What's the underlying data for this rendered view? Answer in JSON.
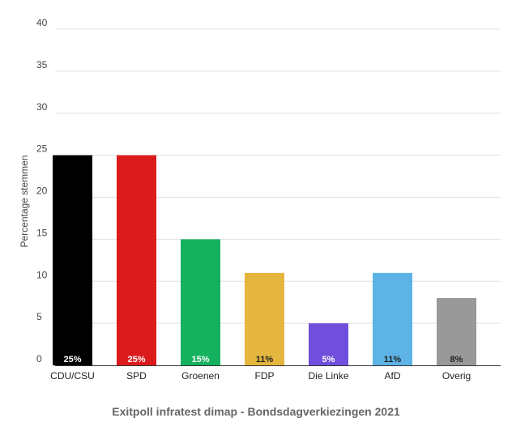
{
  "chart_data": {
    "type": "bar",
    "title": "Exitpoll infratest dimap - Bondsdagverkiezingen 2021",
    "xlabel": "",
    "ylabel": "Percentage stemmen",
    "ylim": [
      0,
      40
    ],
    "yticks": [
      0,
      5,
      10,
      15,
      20,
      25,
      30,
      35,
      40
    ],
    "grid": true,
    "categories": [
      "CDU/CSU",
      "SPD",
      "Groenen",
      "FDP",
      "Die Linke",
      "AfD",
      "Overig"
    ],
    "values": [
      25,
      25,
      15,
      11,
      5,
      11,
      8
    ],
    "data_labels": [
      "25%",
      "25%",
      "15%",
      "11%",
      "5%",
      "11%",
      "8%"
    ],
    "colors": [
      "#000000",
      "#dc1c1c",
      "#16b15e",
      "#e4b63e",
      "#6f4fdb",
      "#5db3e6",
      "#999999"
    ],
    "label_colors": [
      "#ffffff",
      "#ffffff",
      "#ffffff",
      "#222222",
      "#ffffff",
      "#222222",
      "#222222"
    ]
  }
}
